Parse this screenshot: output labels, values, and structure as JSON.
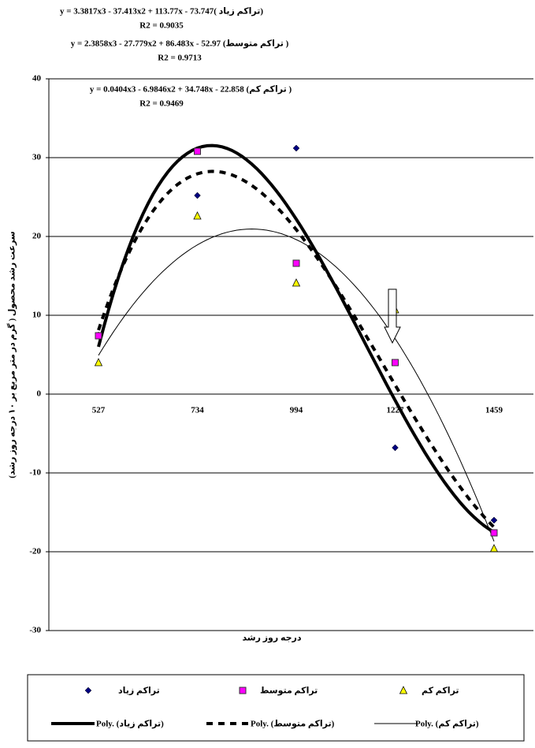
{
  "chart_data": {
    "type": "scatter",
    "annotations": [
      "y = 3.3817x3 - 37.413x2 + 113.77x - 73.747( تراکم زیاد)",
      "R2 = 0.9035",
      "y = 2.3858x3 - 27.779x2 + 86.483x - 52.97 (تراکم متوسط )",
      "R2 = 0.9713",
      "y = 0.0404x3 - 6.9846x2 + 34.748x - 22.858 (تراکم کم )",
      "R2 = 0.9469"
    ],
    "x_label": "درجه روز رشد",
    "y_label": "سرعت رشد محصول ( گرم در متر مربع بر ۱۰ درجه روز رشد)",
    "categories": [
      "527",
      "734",
      "994",
      "1227",
      "1459"
    ],
    "series": [
      {
        "name": "تراکم زیاد",
        "trendline_name": "Poly. (تراکم زیاد)",
        "marker": "diamond",
        "color": "#000080",
        "values": [
          7.5,
          25.2,
          31.2,
          -6.8,
          -16.0
        ]
      },
      {
        "name": "تراکم متوسط",
        "trendline_name": "Poly. (تراکم متوسط)",
        "marker": "square",
        "color": "#ff00ff",
        "values": [
          7.4,
          30.8,
          16.6,
          4.0,
          -17.6
        ]
      },
      {
        "name": "تراکم کم",
        "trendline_name": "Poly. (تراکم کم)",
        "marker": "triangle",
        "color": "#ffff00",
        "values": [
          4.0,
          22.6,
          14.1,
          10.7,
          -19.6
        ]
      }
    ],
    "ylim": [
      -30,
      40
    ],
    "yticks": [
      -30,
      -20,
      -10,
      0,
      10,
      20,
      30,
      40
    ],
    "grid": true,
    "legend": "bottom"
  }
}
